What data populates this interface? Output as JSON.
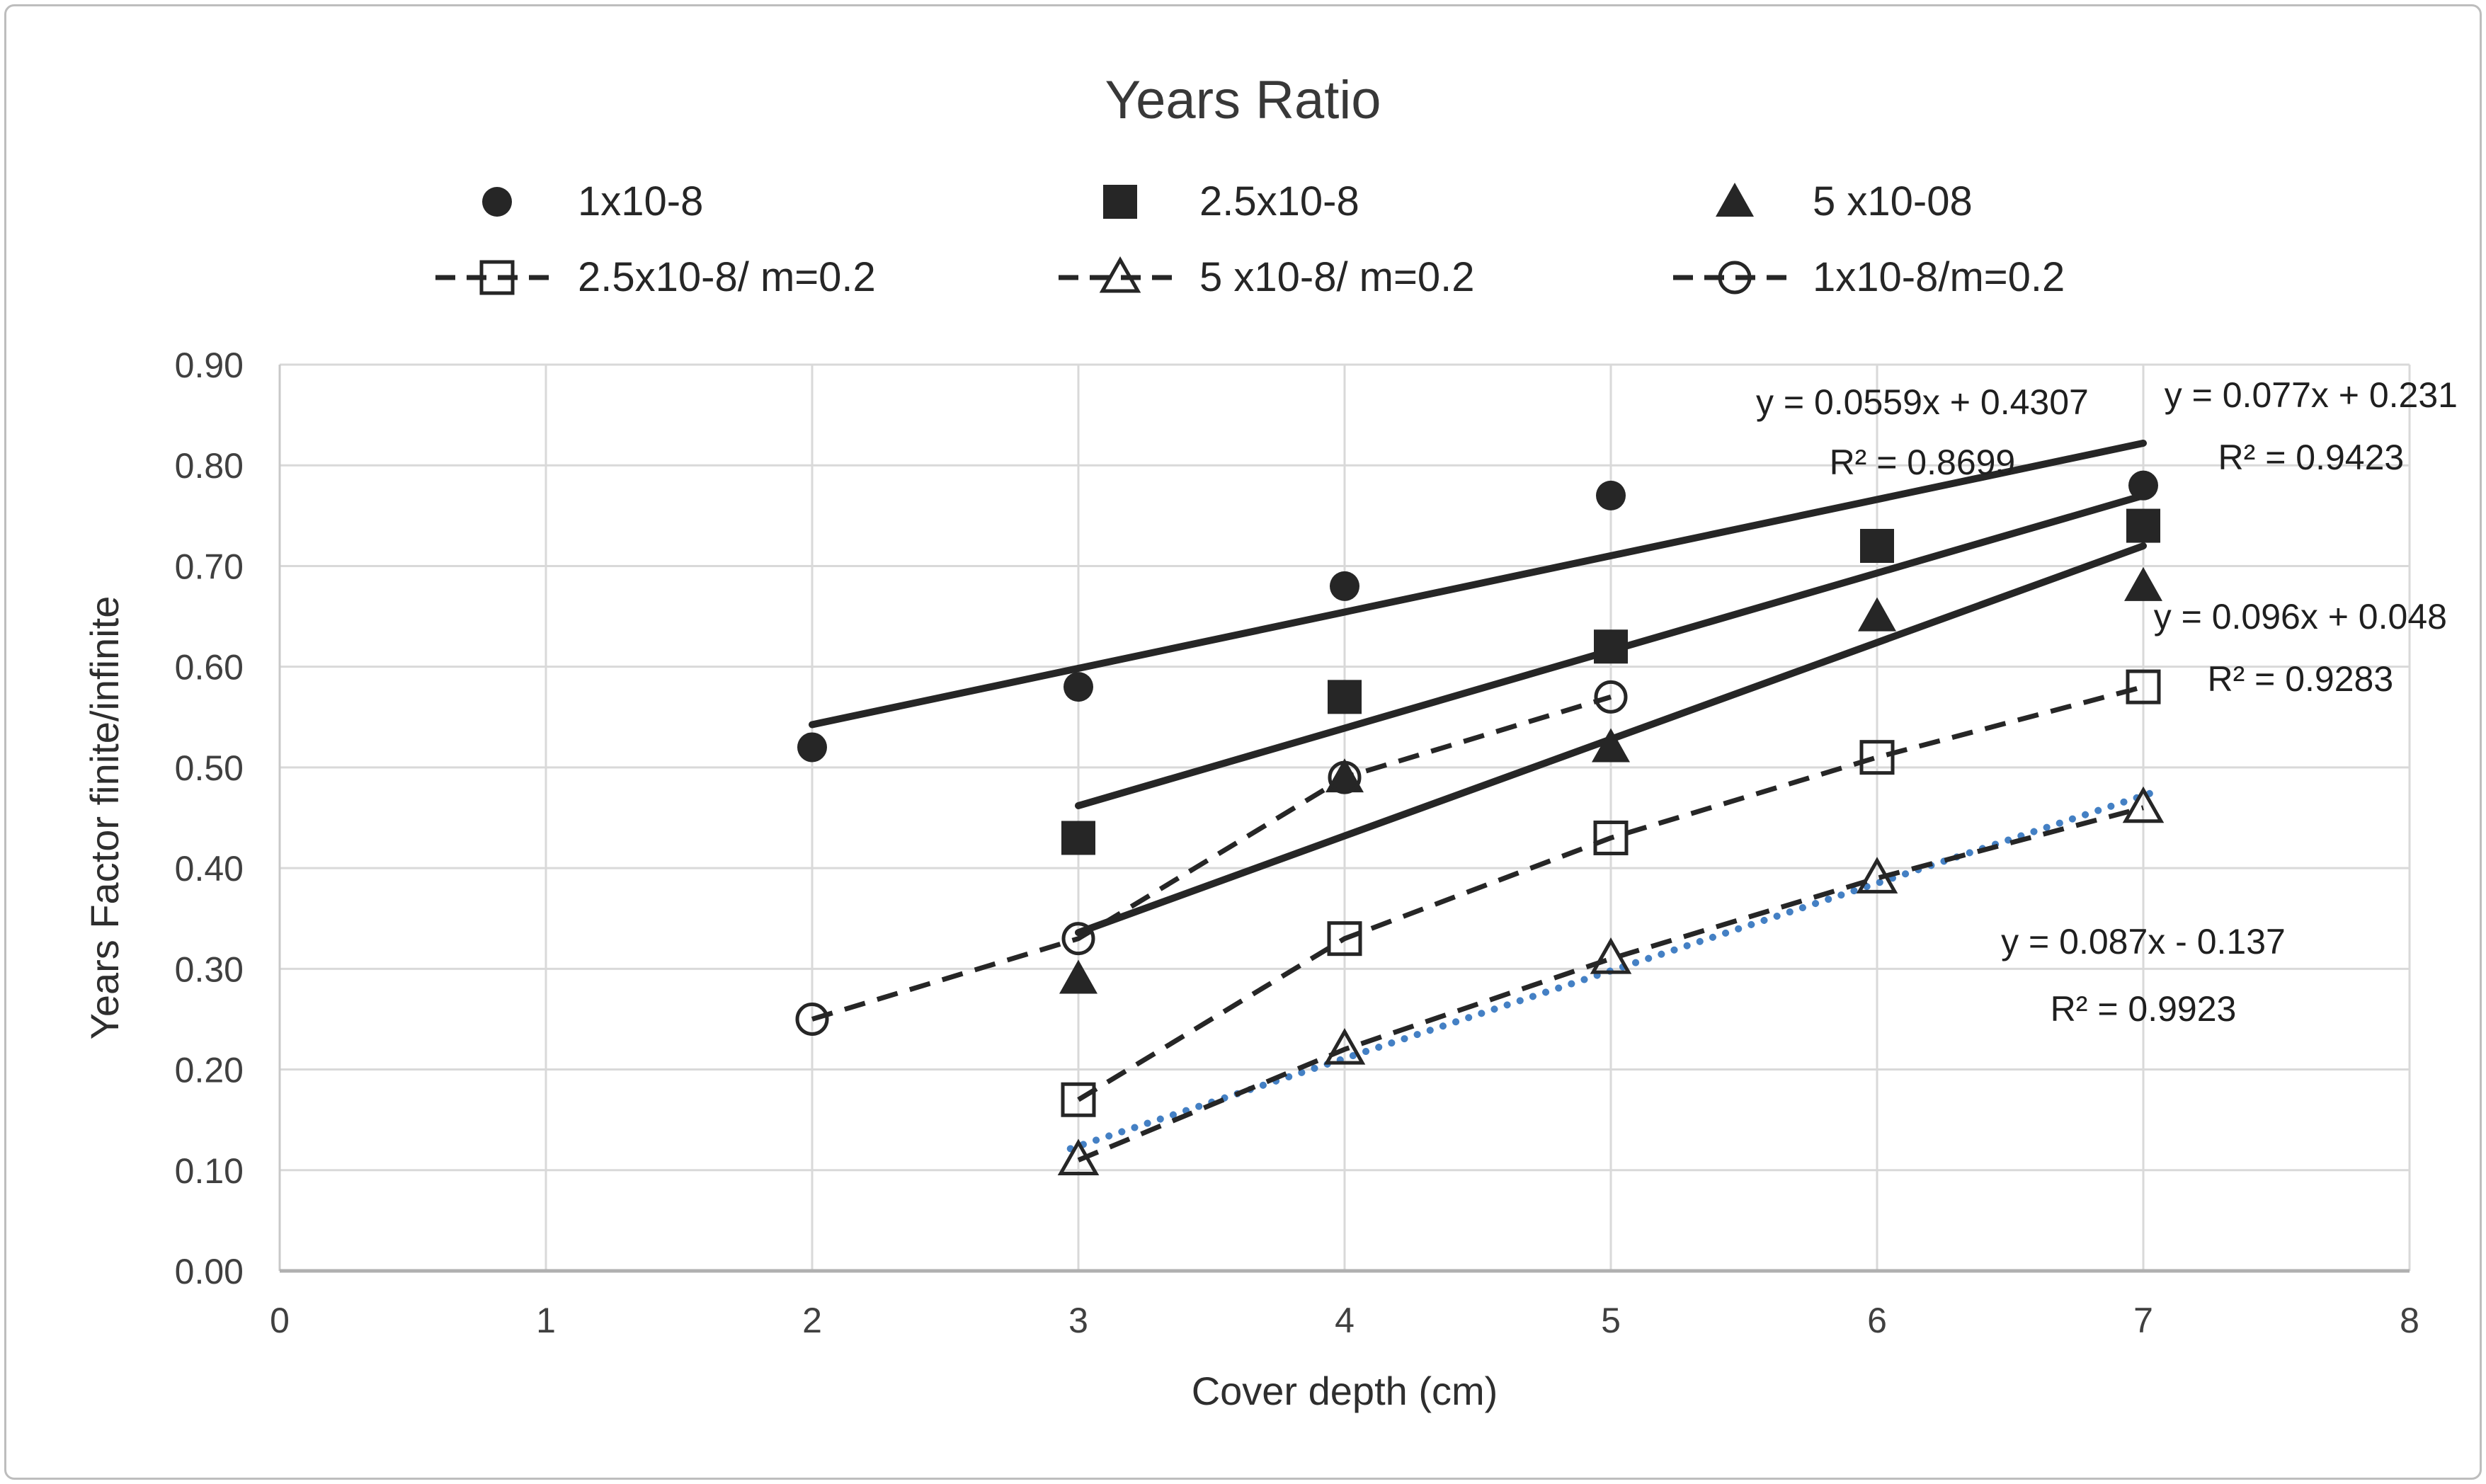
{
  "chart_data": {
    "type": "scatter",
    "title": "Years Ratio",
    "xlabel": "Cover depth (cm)",
    "ylabel": "Years Factor finite/infinite",
    "xlim": [
      0,
      8
    ],
    "ylim": [
      0.0,
      0.9
    ],
    "x_ticks": [
      "0",
      "1",
      "2",
      "3",
      "4",
      "5",
      "6",
      "7",
      "8"
    ],
    "y_ticks": [
      "0.00",
      "0.10",
      "0.20",
      "0.30",
      "0.40",
      "0.50",
      "0.60",
      "0.70",
      "0.80",
      "0.90"
    ],
    "grid": true,
    "legend_position": "top",
    "colors": {
      "series": "#262626",
      "grid": "#d9d9d9",
      "axis": "#b0b0b0",
      "spine": "#c9c9c9",
      "trend_dotted": "#4480c4",
      "tick_text": "#404040"
    },
    "series": [
      {
        "name": "1x10-8",
        "marker": "filled-circle",
        "line": "none",
        "points": [
          [
            2,
            0.52
          ],
          [
            3,
            0.58
          ],
          [
            4,
            0.68
          ],
          [
            5,
            0.77
          ],
          [
            7,
            0.78
          ]
        ]
      },
      {
        "name": "2.5x10-8",
        "marker": "filled-square",
        "line": "none",
        "points": [
          [
            3,
            0.43
          ],
          [
            4,
            0.57
          ],
          [
            5,
            0.62
          ],
          [
            6,
            0.72
          ],
          [
            7,
            0.74
          ]
        ]
      },
      {
        "name": "5 x10-08",
        "marker": "filled-triangle",
        "line": "none",
        "points": [
          [
            3,
            0.29
          ],
          [
            4,
            0.49
          ],
          [
            5,
            0.52
          ],
          [
            6,
            0.65
          ],
          [
            7,
            0.68
          ]
        ]
      },
      {
        "name": "2.5x10-8/ m=0.2",
        "marker": "open-square",
        "line": "dashed",
        "points": [
          [
            3,
            0.17
          ],
          [
            4,
            0.33
          ],
          [
            5,
            0.43
          ],
          [
            6,
            0.51
          ],
          [
            7,
            0.58
          ]
        ]
      },
      {
        "name": "5 x10-8/ m=0.2",
        "marker": "open-triangle",
        "line": "dashed",
        "points": [
          [
            3,
            0.11
          ],
          [
            4,
            0.22
          ],
          [
            5,
            0.31
          ],
          [
            6,
            0.39
          ],
          [
            7,
            0.46
          ]
        ]
      },
      {
        "name": "1x10-8/m=0.2",
        "marker": "open-circle",
        "line": "dashed",
        "points": [
          [
            2,
            0.25
          ],
          [
            3,
            0.33
          ],
          [
            4,
            0.49
          ],
          [
            5,
            0.57
          ]
        ]
      }
    ],
    "trendlines": [
      {
        "equation": "y = 0.0559x + 0.4307",
        "r2": "R² = 0.8699",
        "slope": 0.0559,
        "intercept": 0.4307,
        "x_start": 2,
        "x_end": 7,
        "style": "solid",
        "label_x": 6.17,
        "label_y": 0.863,
        "label_y2": 0.803
      },
      {
        "equation": "y = 0.077x + 0.231",
        "r2": "R² = 0.9423",
        "slope": 0.077,
        "intercept": 0.231,
        "x_start": 3,
        "x_end": 7,
        "style": "solid",
        "label_x": 7.63,
        "label_y": 0.87,
        "label_y2": 0.808
      },
      {
        "equation": "y = 0.096x + 0.048",
        "r2": "R² = 0.9283",
        "slope": 0.096,
        "intercept": 0.048,
        "x_start": 3,
        "x_end": 7,
        "style": "solid",
        "label_x": 7.59,
        "label_y": 0.65,
        "label_y2": 0.588
      },
      {
        "equation": "y = 0.087x - 0.137",
        "r2": "R² = 0.9923",
        "slope": 0.087,
        "intercept": -0.137,
        "x_start": 2.97,
        "x_end": 7.03,
        "style": "dotted",
        "label_x": 7.0,
        "label_y": 0.327,
        "label_y2": 0.26
      }
    ]
  }
}
